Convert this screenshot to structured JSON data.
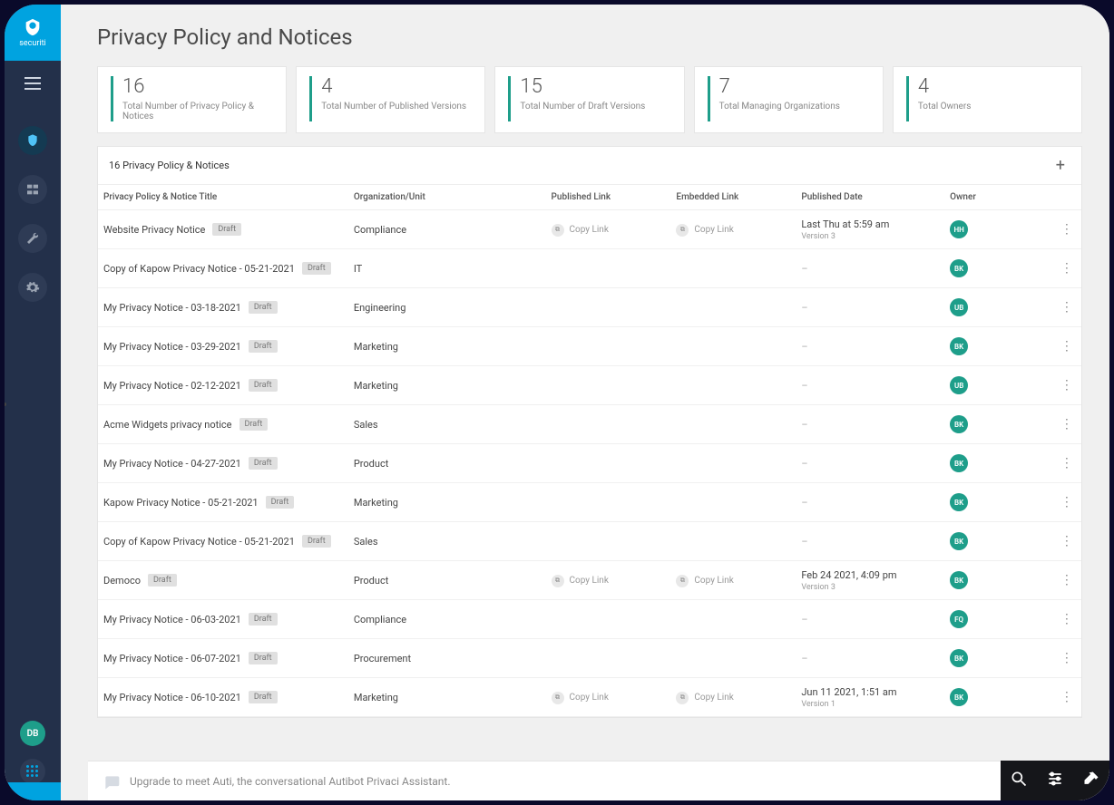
{
  "brand": {
    "name": "securiti"
  },
  "sidebar": {
    "user_initials": "DB"
  },
  "page": {
    "title": "Privacy Policy and Notices",
    "table_caption": "16 Privacy Policy & Notices"
  },
  "stats": [
    {
      "value": "16",
      "label": "Total Number of Privacy Policy & Notices"
    },
    {
      "value": "4",
      "label": "Total Number of Published Versions"
    },
    {
      "value": "15",
      "label": "Total Number of Draft Versions"
    },
    {
      "value": "7",
      "label": "Total Managing Organizations"
    },
    {
      "value": "4",
      "label": "Total Owners"
    }
  ],
  "columns": {
    "title": "Privacy Policy & Notice Title",
    "org": "Organization/Unit",
    "published_link": "Published Link",
    "embedded_link": "Embedded Link",
    "published_date": "Published Date",
    "owner": "Owner"
  },
  "labels": {
    "copy_link": "Copy Link",
    "draft": "Draft",
    "dash": "–"
  },
  "chat": {
    "prompt": "Upgrade to meet Auti, the conversational Autibot Privaci Assistant."
  },
  "colors": {
    "brand_blue": "#00a3e0",
    "sidebar_bg": "#23304a",
    "teal": "#1e9e8a",
    "page_bg": "#f0f0f0",
    "border": "#e5e5e5",
    "badge_bg": "#e0e0e0"
  },
  "rows": [
    {
      "title": "Website Privacy Notice",
      "badge": "Draft",
      "org": "Compliance",
      "published_link": true,
      "embedded_link": true,
      "date": "Last Thu at 5:59 am",
      "version": "Version 3",
      "owner": "HH"
    },
    {
      "title": "Copy of Kapow Privacy Notice - 05-21-2021",
      "badge": "Draft",
      "org": "IT",
      "published_link": false,
      "embedded_link": false,
      "date": "",
      "version": "",
      "owner": "BK"
    },
    {
      "title": "My Privacy Notice - 03-18-2021",
      "badge": "Draft",
      "org": "Engineering",
      "published_link": false,
      "embedded_link": false,
      "date": "",
      "version": "",
      "owner": "UB"
    },
    {
      "title": "My Privacy Notice - 03-29-2021",
      "badge": "Draft",
      "org": "Marketing",
      "published_link": false,
      "embedded_link": false,
      "date": "",
      "version": "",
      "owner": "BK"
    },
    {
      "title": "My Privacy Notice - 02-12-2021",
      "badge": "Draft",
      "org": "Marketing",
      "published_link": false,
      "embedded_link": false,
      "date": "",
      "version": "",
      "owner": "UB"
    },
    {
      "title": "Acme Widgets privacy notice",
      "badge": "Draft",
      "org": "Sales",
      "published_link": false,
      "embedded_link": false,
      "date": "",
      "version": "",
      "owner": "BK"
    },
    {
      "title": "My Privacy Notice - 04-27-2021",
      "badge": "Draft",
      "org": "Product",
      "published_link": false,
      "embedded_link": false,
      "date": "",
      "version": "",
      "owner": "BK"
    },
    {
      "title": "Kapow Privacy Notice - 05-21-2021",
      "badge": "Draft",
      "org": "Marketing",
      "published_link": false,
      "embedded_link": false,
      "date": "",
      "version": "",
      "owner": "BK"
    },
    {
      "title": "Copy of Kapow Privacy Notice - 05-21-2021",
      "badge": "Draft",
      "org": "Sales",
      "published_link": false,
      "embedded_link": false,
      "date": "",
      "version": "",
      "owner": "BK"
    },
    {
      "title": "Democo",
      "badge": "Draft",
      "org": "Product",
      "published_link": true,
      "embedded_link": true,
      "date": "Feb 24 2021, 4:09 pm",
      "version": "Version 3",
      "owner": "BK"
    },
    {
      "title": "My Privacy Notice - 06-03-2021",
      "badge": "Draft",
      "org": "Compliance",
      "published_link": false,
      "embedded_link": false,
      "date": "",
      "version": "",
      "owner": "FQ"
    },
    {
      "title": "My Privacy Notice - 06-07-2021",
      "badge": "Draft",
      "org": "Procurement",
      "published_link": false,
      "embedded_link": false,
      "date": "",
      "version": "",
      "owner": "BK"
    },
    {
      "title": "My Privacy Notice - 06-10-2021",
      "badge": "Draft",
      "org": "Marketing",
      "published_link": true,
      "embedded_link": true,
      "date": "Jun 11 2021, 1:51 am",
      "version": "Version 1",
      "owner": "BK"
    }
  ]
}
